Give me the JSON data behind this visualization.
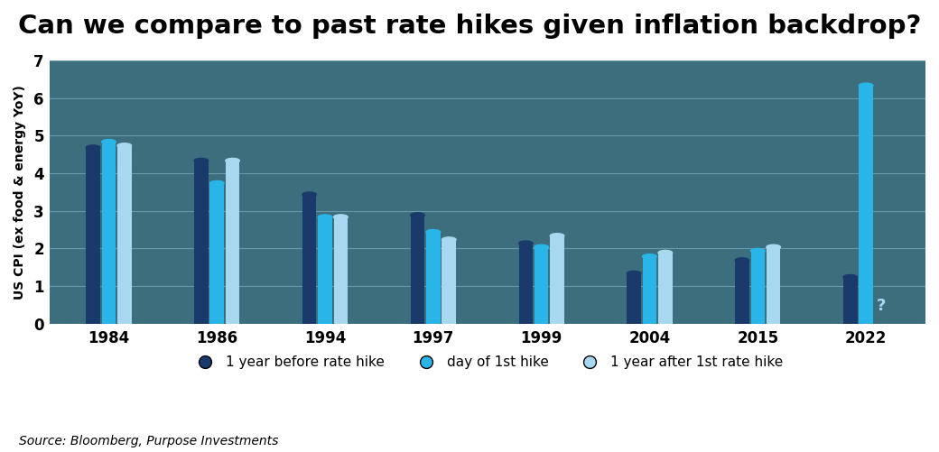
{
  "title": "Can we compare to past rate hikes given inflation backdrop?",
  "ylabel": "US CPI (ex food & energy YoY)",
  "source": "Source: Bloomberg, Purpose Investments",
  "background_color": "#3d6e7e",
  "categories": [
    "1984",
    "1986",
    "1994",
    "1997",
    "1999",
    "2004",
    "2015",
    "2022"
  ],
  "bar1_values": [
    4.75,
    4.4,
    3.5,
    2.95,
    2.2,
    1.4,
    1.75,
    1.3
  ],
  "bar2_values": [
    4.9,
    3.8,
    2.9,
    2.5,
    2.1,
    1.85,
    2.0,
    6.4
  ],
  "bar3_values": [
    4.8,
    4.4,
    2.9,
    2.3,
    2.4,
    1.95,
    2.1,
    null
  ],
  "bar1_color": "#1a3a6b",
  "bar2_color": "#29b5e8",
  "bar3_color": "#a8d8f0",
  "ylim": [
    0,
    7
  ],
  "yticks": [
    0,
    1,
    2,
    3,
    4,
    5,
    6,
    7
  ],
  "legend_labels": [
    "1 year before rate hike",
    "day of 1st hike",
    "1 year after 1st rate hike"
  ],
  "question_mark_color": "#a8d8f0",
  "bar_width": 0.13,
  "bar_gap": 0.015,
  "title_fontsize": 21,
  "axis_label_fontsize": 10,
  "tick_fontsize": 12,
  "legend_fontsize": 11,
  "source_fontsize": 10,
  "grid_color": "#6a9aaa",
  "grid_linewidth": 0.8
}
